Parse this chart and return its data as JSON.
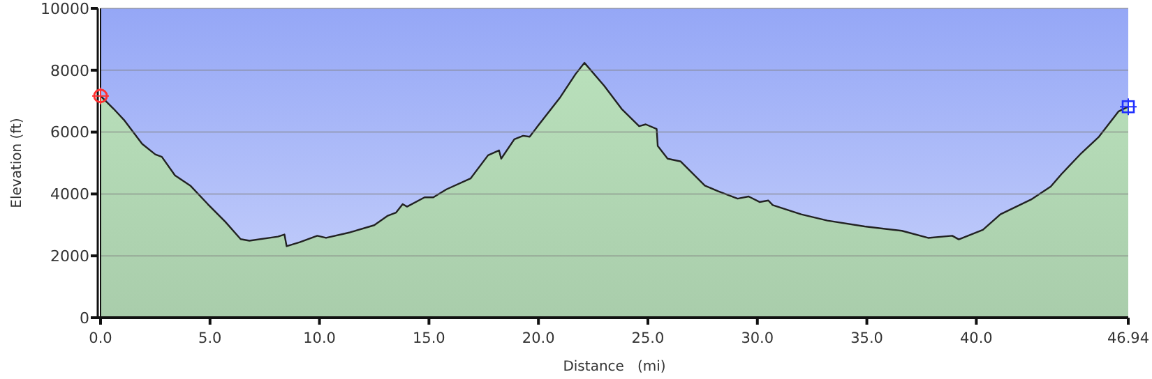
{
  "chart_data": {
    "type": "area",
    "xlabel": "Distance   (mi)",
    "ylabel": "Elevation (ft)",
    "xlim": [
      0,
      46.94
    ],
    "ylim": [
      0,
      10000
    ],
    "xticks": [
      {
        "value": 0,
        "label": "0.0"
      },
      {
        "value": 5,
        "label": "5.0"
      },
      {
        "value": 10,
        "label": "10.0"
      },
      {
        "value": 15,
        "label": "15.0"
      },
      {
        "value": 20,
        "label": "20.0"
      },
      {
        "value": 25,
        "label": "25.0"
      },
      {
        "value": 30,
        "label": "30.0"
      },
      {
        "value": 35,
        "label": "35.0"
      },
      {
        "value": 40,
        "label": "40.0"
      },
      46.94
    ],
    "yticks": [
      0,
      2000,
      4000,
      6000,
      8000,
      10000
    ],
    "grid": "y",
    "series": [
      {
        "color": "#b9e0bb",
        "x": [
          0,
          0.6,
          1.1,
          1.9,
          2.5,
          2.8,
          3.4,
          4.1,
          4.9,
          5.7,
          6.4,
          6.8,
          8.1,
          8.4,
          8.5,
          9.1,
          9.9,
          10.3,
          11.4,
          12.5,
          13.1,
          13.5,
          13.8,
          14.0,
          14.8,
          15.2,
          15.8,
          16.9,
          17.7,
          18.2,
          18.3,
          18.9,
          19.3,
          19.6,
          20.0,
          21.0,
          21.7,
          22.1,
          23.0,
          23.8,
          24.6,
          24.9,
          25.4,
          25.45,
          25.9,
          26.5,
          27.6,
          28.2,
          29.1,
          29.6,
          30.1,
          30.5,
          30.7,
          32.0,
          33.2,
          34.9,
          36.6,
          37.8,
          38.9,
          39.2,
          40.3,
          41.1,
          42.5,
          43.4,
          43.9,
          44.8,
          45.6,
          46.5,
          46.94
        ],
        "values": [
          7170,
          6750,
          6370,
          5620,
          5280,
          5200,
          4600,
          4270,
          3670,
          3100,
          2540,
          2490,
          2620,
          2690,
          2310,
          2440,
          2650,
          2580,
          2760,
          2990,
          3290,
          3400,
          3670,
          3590,
          3890,
          3890,
          4150,
          4500,
          5250,
          5410,
          5140,
          5770,
          5880,
          5850,
          6220,
          7130,
          7880,
          8240,
          7500,
          6750,
          6190,
          6250,
          6100,
          5550,
          5140,
          5050,
          4270,
          4090,
          3850,
          3920,
          3740,
          3790,
          3640,
          3340,
          3140,
          2950,
          2810,
          2580,
          2650,
          2530,
          2840,
          3340,
          3820,
          4240,
          4650,
          5320,
          5850,
          6670,
          6820
        ]
      }
    ]
  }
}
